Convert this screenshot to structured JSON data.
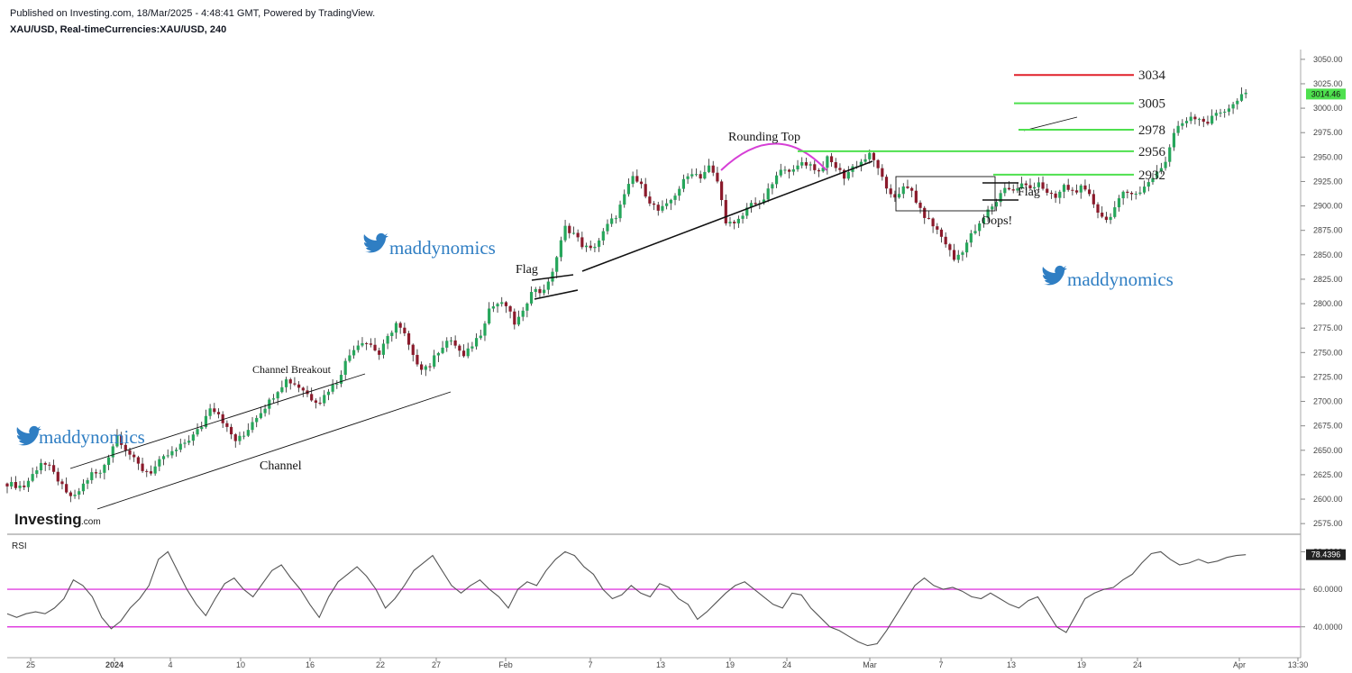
{
  "header": {
    "published": "Published on Investing.com, 18/Mar/2025 - 4:48:41 GMT, Powered by TradingView.",
    "symbol": "XAU/USD, Real-timeCurrencies:XAU/USD, 240"
  },
  "branding": {
    "logo": "Investing",
    "logo_suffix": ".com",
    "watermark": "maddynomics"
  },
  "rsi_label": "RSI",
  "chart_data": {
    "type": "candlestick",
    "title": "XAU/USD, Real-timeCurrencies:XAU/USD, 240",
    "x_ticks": [
      "25",
      "2024",
      "4",
      "10",
      "16",
      "22",
      "27",
      "Feb",
      "7",
      "13",
      "19",
      "24",
      "Mar",
      "7",
      "13",
      "19",
      "24",
      "Apr",
      "13:30"
    ],
    "y_ticks": [
      3050,
      3025,
      3000,
      2975,
      2950,
      2925,
      2900,
      2875,
      2850,
      2825,
      2800,
      2775,
      2750,
      2725,
      2700,
      2675,
      2650,
      2625,
      2600,
      2575
    ],
    "ylim": [
      2565,
      3060
    ],
    "last_price": "3014.46",
    "price_path": [
      [
        0,
        2616
      ],
      [
        2,
        2614
      ],
      [
        4,
        2613
      ],
      [
        6,
        2625
      ],
      [
        8,
        2638
      ],
      [
        10,
        2632
      ],
      [
        12,
        2620
      ],
      [
        14,
        2605
      ],
      [
        16,
        2602
      ],
      [
        18,
        2615
      ],
      [
        20,
        2626
      ],
      [
        22,
        2626
      ],
      [
        24,
        2645
      ],
      [
        26,
        2665
      ],
      [
        28,
        2652
      ],
      [
        30,
        2640
      ],
      [
        32,
        2630
      ],
      [
        34,
        2628
      ],
      [
        36,
        2638
      ],
      [
        38,
        2645
      ],
      [
        40,
        2650
      ],
      [
        42,
        2658
      ],
      [
        44,
        2665
      ],
      [
        46,
        2675
      ],
      [
        48,
        2695
      ],
      [
        50,
        2688
      ],
      [
        52,
        2672
      ],
      [
        54,
        2660
      ],
      [
        56,
        2665
      ],
      [
        58,
        2680
      ],
      [
        60,
        2690
      ],
      [
        62,
        2700
      ],
      [
        64,
        2712
      ],
      [
        66,
        2722
      ],
      [
        68,
        2718
      ],
      [
        70,
        2712
      ],
      [
        72,
        2703
      ],
      [
        74,
        2700
      ],
      [
        76,
        2712
      ],
      [
        78,
        2720
      ],
      [
        80,
        2740
      ],
      [
        82,
        2755
      ],
      [
        84,
        2762
      ],
      [
        86,
        2758
      ],
      [
        88,
        2748
      ],
      [
        90,
        2765
      ],
      [
        92,
        2780
      ],
      [
        94,
        2768
      ],
      [
        96,
        2745
      ],
      [
        98,
        2735
      ],
      [
        100,
        2737
      ],
      [
        102,
        2752
      ],
      [
        104,
        2762
      ],
      [
        106,
        2758
      ],
      [
        108,
        2745
      ],
      [
        110,
        2758
      ],
      [
        112,
        2770
      ],
      [
        114,
        2795
      ],
      [
        116,
        2800
      ],
      [
        118,
        2798
      ],
      [
        120,
        2780
      ],
      [
        122,
        2790
      ],
      [
        124,
        2815
      ],
      [
        126,
        2812
      ],
      [
        128,
        2820
      ],
      [
        130,
        2848
      ],
      [
        132,
        2878
      ],
      [
        134,
        2872
      ],
      [
        136,
        2860
      ],
      [
        138,
        2855
      ],
      [
        140,
        2865
      ],
      [
        142,
        2880
      ],
      [
        144,
        2890
      ],
      [
        146,
        2910
      ],
      [
        148,
        2930
      ],
      [
        150,
        2920
      ],
      [
        152,
        2905
      ],
      [
        154,
        2895
      ],
      [
        156,
        2900
      ],
      [
        158,
        2912
      ],
      [
        160,
        2925
      ],
      [
        162,
        2935
      ],
      [
        164,
        2930
      ],
      [
        166,
        2940
      ],
      [
        168,
        2925
      ],
      [
        170,
        2885
      ],
      [
        172,
        2880
      ],
      [
        174,
        2890
      ],
      [
        176,
        2905
      ],
      [
        178,
        2900
      ],
      [
        180,
        2915
      ],
      [
        182,
        2930
      ],
      [
        184,
        2940
      ],
      [
        186,
        2935
      ],
      [
        188,
        2945
      ],
      [
        190,
        2942
      ],
      [
        192,
        2935
      ],
      [
        194,
        2948
      ],
      [
        196,
        2940
      ],
      [
        198,
        2930
      ],
      [
        200,
        2940
      ],
      [
        202,
        2945
      ],
      [
        204,
        2952
      ],
      [
        206,
        2940
      ],
      [
        208,
        2915
      ],
      [
        210,
        2910
      ],
      [
        212,
        2918
      ],
      [
        214,
        2915
      ],
      [
        216,
        2895
      ],
      [
        218,
        2885
      ],
      [
        220,
        2875
      ],
      [
        222,
        2862
      ],
      [
        224,
        2845
      ],
      [
        226,
        2855
      ],
      [
        228,
        2870
      ],
      [
        230,
        2880
      ],
      [
        232,
        2895
      ],
      [
        234,
        2905
      ],
      [
        236,
        2920
      ],
      [
        238,
        2915
      ],
      [
        240,
        2922
      ],
      [
        242,
        2918
      ],
      [
        244,
        2925
      ],
      [
        246,
        2912
      ],
      [
        248,
        2908
      ],
      [
        250,
        2920
      ],
      [
        252,
        2915
      ],
      [
        254,
        2918
      ],
      [
        256,
        2910
      ],
      [
        258,
        2895
      ],
      [
        260,
        2885
      ],
      [
        262,
        2898
      ],
      [
        264,
        2912
      ],
      [
        266,
        2915
      ],
      [
        268,
        2913
      ],
      [
        270,
        2925
      ],
      [
        272,
        2935
      ],
      [
        274,
        2945
      ],
      [
        276,
        2975
      ],
      [
        278,
        2985
      ],
      [
        280,
        2992
      ],
      [
        282,
        2990
      ],
      [
        284,
        2985
      ],
      [
        286,
        2995
      ],
      [
        288,
        2998
      ],
      [
        290,
        3003
      ],
      [
        292,
        3012
      ],
      [
        293,
        3014.46
      ]
    ],
    "rsi_ticks": [
      80,
      60,
      40
    ],
    "rsi_ylim": [
      25,
      85
    ],
    "rsi_last": "78.4396",
    "rsi_path": [
      [
        0,
        47
      ],
      [
        2,
        45
      ],
      [
        4,
        47
      ],
      [
        6,
        48
      ],
      [
        8,
        47
      ],
      [
        10,
        50
      ],
      [
        12,
        55
      ],
      [
        14,
        65
      ],
      [
        16,
        62
      ],
      [
        18,
        56
      ],
      [
        20,
        45
      ],
      [
        22,
        39
      ],
      [
        24,
        43
      ],
      [
        26,
        50
      ],
      [
        28,
        55
      ],
      [
        30,
        62
      ],
      [
        32,
        76
      ],
      [
        34,
        80
      ],
      [
        36,
        70
      ],
      [
        38,
        60
      ],
      [
        40,
        52
      ],
      [
        42,
        46
      ],
      [
        44,
        55
      ],
      [
        46,
        63
      ],
      [
        48,
        66
      ],
      [
        50,
        60
      ],
      [
        52,
        56
      ],
      [
        54,
        63
      ],
      [
        56,
        70
      ],
      [
        58,
        73
      ],
      [
        60,
        66
      ],
      [
        62,
        60
      ],
      [
        64,
        52
      ],
      [
        66,
        45
      ],
      [
        68,
        56
      ],
      [
        70,
        64
      ],
      [
        72,
        68
      ],
      [
        74,
        72
      ],
      [
        76,
        67
      ],
      [
        78,
        60
      ],
      [
        80,
        50
      ],
      [
        82,
        55
      ],
      [
        84,
        62
      ],
      [
        86,
        70
      ],
      [
        88,
        74
      ],
      [
        90,
        78
      ],
      [
        92,
        70
      ],
      [
        94,
        62
      ],
      [
        96,
        58
      ],
      [
        98,
        62
      ],
      [
        100,
        65
      ],
      [
        102,
        60
      ],
      [
        104,
        56
      ],
      [
        106,
        50
      ],
      [
        108,
        60
      ],
      [
        110,
        64
      ],
      [
        112,
        62
      ],
      [
        114,
        70
      ],
      [
        116,
        76
      ],
      [
        118,
        80
      ],
      [
        120,
        78
      ],
      [
        122,
        72
      ],
      [
        124,
        68
      ],
      [
        126,
        60
      ],
      [
        128,
        55
      ],
      [
        130,
        57
      ],
      [
        132,
        62
      ],
      [
        134,
        58
      ],
      [
        136,
        56
      ],
      [
        138,
        63
      ],
      [
        140,
        61
      ],
      [
        142,
        55
      ],
      [
        144,
        52
      ],
      [
        146,
        44
      ],
      [
        148,
        48
      ],
      [
        150,
        53
      ],
      [
        152,
        58
      ],
      [
        154,
        62
      ],
      [
        156,
        64
      ],
      [
        158,
        60
      ],
      [
        160,
        56
      ],
      [
        162,
        52
      ],
      [
        164,
        50
      ],
      [
        166,
        58
      ],
      [
        168,
        57
      ],
      [
        170,
        50
      ],
      [
        172,
        45
      ],
      [
        174,
        40
      ],
      [
        176,
        38
      ],
      [
        178,
        35
      ],
      [
        180,
        32
      ],
      [
        182,
        30
      ],
      [
        184,
        31
      ],
      [
        186,
        38
      ],
      [
        188,
        46
      ],
      [
        190,
        54
      ],
      [
        192,
        62
      ],
      [
        194,
        66
      ],
      [
        196,
        62
      ],
      [
        198,
        60
      ],
      [
        200,
        61
      ],
      [
        202,
        59
      ],
      [
        204,
        56
      ],
      [
        206,
        55
      ],
      [
        208,
        58
      ],
      [
        210,
        55
      ],
      [
        212,
        52
      ],
      [
        214,
        50
      ],
      [
        216,
        54
      ],
      [
        218,
        56
      ],
      [
        220,
        48
      ],
      [
        222,
        40
      ],
      [
        224,
        37
      ],
      [
        226,
        46
      ],
      [
        228,
        55
      ],
      [
        230,
        58
      ],
      [
        232,
        60
      ],
      [
        234,
        61
      ],
      [
        236,
        65
      ],
      [
        238,
        68
      ],
      [
        240,
        74
      ],
      [
        242,
        79
      ],
      [
        244,
        80
      ],
      [
        246,
        76
      ],
      [
        248,
        73
      ],
      [
        250,
        74
      ],
      [
        252,
        76
      ],
      [
        254,
        74
      ],
      [
        256,
        75
      ],
      [
        258,
        77
      ],
      [
        260,
        78
      ],
      [
        262,
        78.4396
      ]
    ],
    "levels": [
      {
        "label": "3034",
        "value": 3034,
        "color": "#e0202a"
      },
      {
        "label": "3005",
        "value": 3005,
        "color": "#4ee04e"
      },
      {
        "label": "2978",
        "value": 2978,
        "color": "#4ee04e"
      },
      {
        "label": "2956",
        "value": 2956,
        "color": "#4ee04e"
      },
      {
        "label": "2932",
        "value": 2932,
        "color": "#4ee04e"
      }
    ],
    "rsi_bands": [
      {
        "value": 60,
        "color": "#e040e0"
      },
      {
        "value": 40,
        "color": "#e040e0"
      }
    ],
    "annotations": [
      "Channel Breakout",
      "Channel",
      "Flag",
      "Rounding Top",
      "Flag",
      "Oops!"
    ],
    "colors": {
      "up": "#26a65b",
      "down": "#8b1a2b",
      "wick": "#222222",
      "rsi_line": "#555555",
      "rounding_top": "#d63fd6"
    }
  }
}
